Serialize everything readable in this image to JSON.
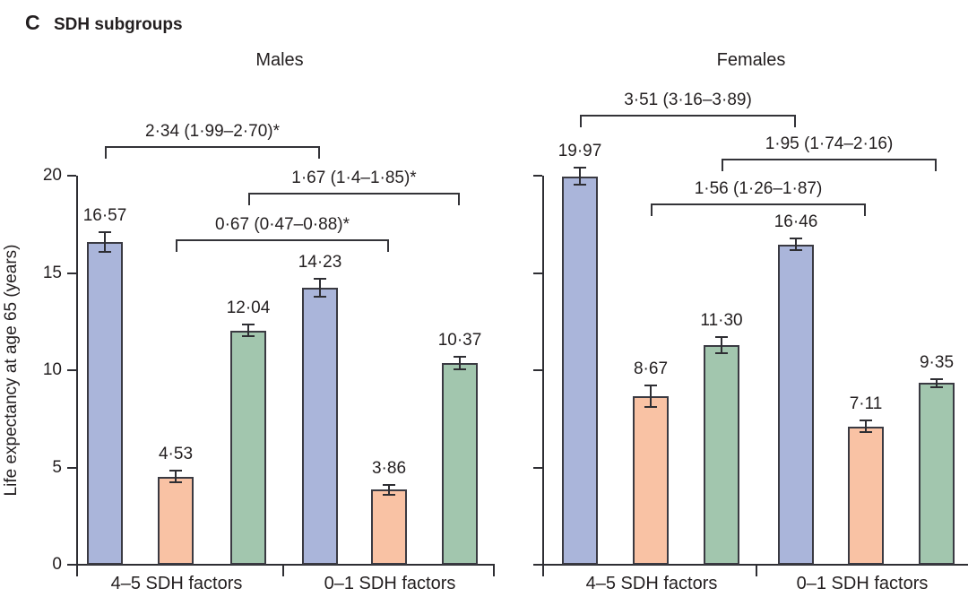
{
  "figure": {
    "panel_letter": "C",
    "panel_title": "SDH subgroups",
    "ylabel": "Life expectancy at age 65 (years)"
  },
  "colors": {
    "bar_blue": "#aab5da",
    "bar_orange": "#f9c2a4",
    "bar_green": "#a2c6ae",
    "bar_border": "#3a3a42",
    "axis_line": "#2e2e33",
    "text": "#231f20"
  },
  "chart_data": {
    "type": "bar",
    "subtype": "grouped-bars-with-error-bars-and-comparison-brackets",
    "title": "SDH subgroups",
    "ylabel": "Life expectancy at age 65 (years)",
    "ylim": [
      0,
      20
    ],
    "yticks": [
      0,
      5,
      10,
      15,
      20
    ],
    "grid": false,
    "legend": "none",
    "categories": [
      "4–5 SDH factors",
      "0–1 SDH factors"
    ],
    "panels": [
      {
        "title": "Males",
        "show_ytick_labels": true,
        "categories": [
          "4–5 SDH factors",
          "0–1 SDH factors"
        ],
        "series": [
          {
            "name": "blue",
            "color_key": "bar_blue",
            "values": [
              16.57,
              14.23
            ],
            "errors": [
              0.55,
              0.5
            ],
            "labels": [
              "16·57",
              "14·23"
            ]
          },
          {
            "name": "orange",
            "color_key": "bar_orange",
            "values": [
              4.53,
              3.86
            ],
            "errors": [
              0.35,
              0.3
            ],
            "labels": [
              "4·53",
              "3·86"
            ]
          },
          {
            "name": "green",
            "color_key": "bar_green",
            "values": [
              12.04,
              10.37
            ],
            "errors": [
              0.35,
              0.35
            ],
            "labels": [
              "12·04",
              "10·37"
            ]
          }
        ],
        "comparison_brackets": [
          {
            "series": 0,
            "label": "2·34 (1·99–2·70)*"
          },
          {
            "series": 2,
            "label": "1·67 (1·4–1·85)*"
          },
          {
            "series": 1,
            "label": "0·67 (0·47–0·88)*"
          }
        ]
      },
      {
        "title": "Females",
        "show_ytick_labels": false,
        "categories": [
          "4–5 SDH factors",
          "0–1 SDH factors"
        ],
        "series": [
          {
            "name": "blue",
            "color_key": "bar_blue",
            "values": [
              19.97,
              16.46
            ],
            "errors": [
              0.5,
              0.35
            ],
            "labels": [
              "19·97",
              "16·46"
            ]
          },
          {
            "name": "orange",
            "color_key": "bar_orange",
            "values": [
              8.67,
              7.11
            ],
            "errors": [
              0.6,
              0.35
            ],
            "labels": [
              "8·67",
              "7·11"
            ]
          },
          {
            "name": "green",
            "color_key": "bar_green",
            "values": [
              11.3,
              9.35
            ],
            "errors": [
              0.45,
              0.25
            ],
            "labels": [
              "11·30",
              "9·35"
            ]
          }
        ],
        "comparison_brackets": [
          {
            "series": 0,
            "label": "3·51 (3·16–3·89)"
          },
          {
            "series": 2,
            "label": "1·95 (1·74–2·16)"
          },
          {
            "series": 1,
            "label": "1·56 (1·26–1·87)"
          }
        ]
      }
    ]
  }
}
